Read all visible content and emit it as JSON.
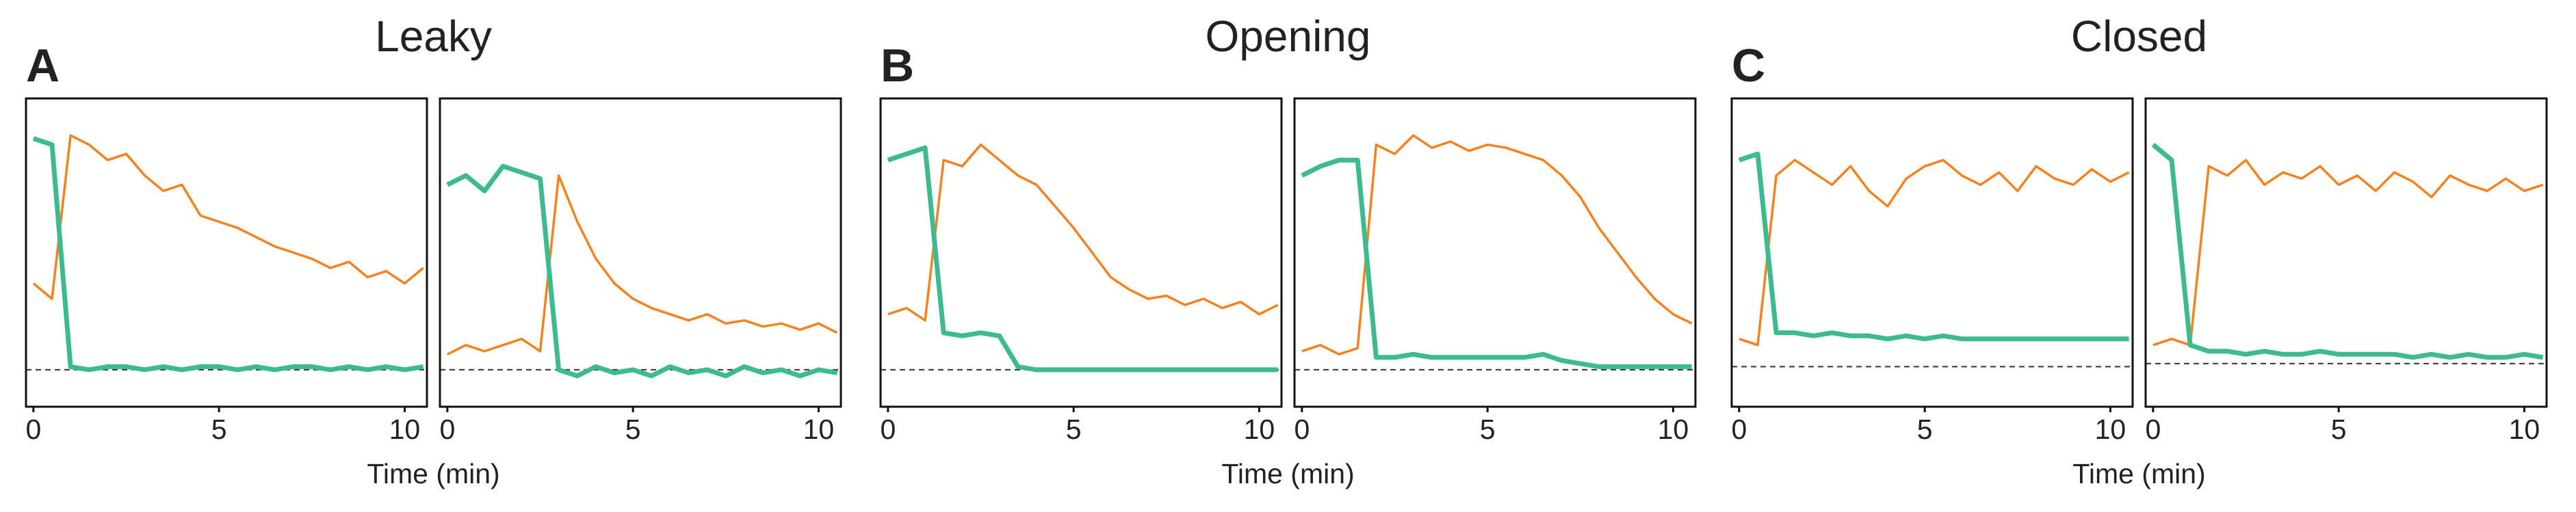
{
  "figure": {
    "groups": [
      {
        "letter": "A",
        "title": "Leaky",
        "x_label": "Time (min)"
      },
      {
        "letter": "B",
        "title": "Opening",
        "x_label": "Time (min)"
      },
      {
        "letter": "C",
        "title": "Closed",
        "x_label": "Time (min)"
      }
    ]
  },
  "chart_data": [
    {
      "type": "line",
      "x": [
        0,
        0.5,
        1,
        1.5,
        2,
        2.5,
        3,
        3.5,
        4,
        4.5,
        5,
        5.5,
        6,
        6.5,
        7,
        7.5,
        8,
        8.5,
        9,
        9.5,
        10,
        10.5
      ],
      "series": [
        {
          "color": "#f5821f",
          "values": [
            0.4,
            0.35,
            0.88,
            0.85,
            0.8,
            0.82,
            0.75,
            0.7,
            0.72,
            0.62,
            0.6,
            0.58,
            0.55,
            0.52,
            0.5,
            0.48,
            0.45,
            0.47,
            0.42,
            0.44,
            0.4,
            0.45
          ]
        },
        {
          "color": "#3dbb8f",
          "values": [
            0.87,
            0.85,
            0.13,
            0.12,
            0.13,
            0.13,
            0.12,
            0.13,
            0.12,
            0.13,
            0.13,
            0.12,
            0.13,
            0.12,
            0.13,
            0.13,
            0.12,
            0.13,
            0.12,
            0.13,
            0.12,
            0.13
          ]
        }
      ],
      "reference_line": 0.12,
      "xlim": [
        -0.2,
        10.6
      ],
      "xticks": [
        0,
        5,
        10
      ],
      "ylim": [
        0,
        1
      ]
    },
    {
      "type": "line",
      "x": [
        0,
        0.5,
        1,
        1.5,
        2,
        2.5,
        3,
        3.5,
        4,
        4.5,
        5,
        5.5,
        6,
        6.5,
        7,
        7.5,
        8,
        8.5,
        9,
        9.5,
        10,
        10.5
      ],
      "series": [
        {
          "color": "#f5821f",
          "values": [
            0.17,
            0.2,
            0.18,
            0.2,
            0.22,
            0.18,
            0.75,
            0.6,
            0.48,
            0.4,
            0.35,
            0.32,
            0.3,
            0.28,
            0.3,
            0.27,
            0.28,
            0.26,
            0.27,
            0.25,
            0.27,
            0.24
          ]
        },
        {
          "color": "#3dbb8f",
          "values": [
            0.72,
            0.75,
            0.7,
            0.78,
            0.76,
            0.74,
            0.12,
            0.1,
            0.13,
            0.11,
            0.12,
            0.1,
            0.13,
            0.11,
            0.12,
            0.1,
            0.13,
            0.11,
            0.12,
            0.1,
            0.12,
            0.11
          ]
        }
      ],
      "reference_line": 0.12,
      "xlim": [
        -0.2,
        10.6
      ],
      "xticks": [
        0,
        5,
        10
      ],
      "ylim": [
        0,
        1
      ]
    },
    {
      "type": "line",
      "x": [
        0,
        0.5,
        1,
        1.5,
        2,
        2.5,
        3,
        3.5,
        4,
        4.5,
        5,
        5.5,
        6,
        6.5,
        7,
        7.5,
        8,
        8.5,
        9,
        9.5,
        10,
        10.5
      ],
      "series": [
        {
          "color": "#f5821f",
          "values": [
            0.3,
            0.32,
            0.28,
            0.8,
            0.78,
            0.85,
            0.8,
            0.75,
            0.72,
            0.65,
            0.58,
            0.5,
            0.42,
            0.38,
            0.35,
            0.36,
            0.33,
            0.35,
            0.32,
            0.34,
            0.3,
            0.33
          ]
        },
        {
          "color": "#3dbb8f",
          "values": [
            0.8,
            0.82,
            0.84,
            0.24,
            0.23,
            0.24,
            0.23,
            0.13,
            0.12,
            0.12,
            0.12,
            0.12,
            0.12,
            0.12,
            0.12,
            0.12,
            0.12,
            0.12,
            0.12,
            0.12,
            0.12,
            0.12
          ]
        }
      ],
      "reference_line": 0.12,
      "xlim": [
        -0.2,
        10.6
      ],
      "xticks": [
        0,
        5,
        10
      ],
      "ylim": [
        0,
        1
      ]
    },
    {
      "type": "line",
      "x": [
        0,
        0.5,
        1,
        1.5,
        2,
        2.5,
        3,
        3.5,
        4,
        4.5,
        5,
        5.5,
        6,
        6.5,
        7,
        7.5,
        8,
        8.5,
        9,
        9.5,
        10,
        10.5
      ],
      "series": [
        {
          "color": "#f5821f",
          "values": [
            0.18,
            0.2,
            0.17,
            0.19,
            0.85,
            0.82,
            0.88,
            0.84,
            0.86,
            0.83,
            0.85,
            0.84,
            0.82,
            0.8,
            0.75,
            0.68,
            0.58,
            0.5,
            0.42,
            0.35,
            0.3,
            0.27
          ]
        },
        {
          "color": "#3dbb8f",
          "values": [
            0.75,
            0.78,
            0.8,
            0.8,
            0.16,
            0.16,
            0.17,
            0.16,
            0.16,
            0.16,
            0.16,
            0.16,
            0.16,
            0.17,
            0.15,
            0.14,
            0.13,
            0.13,
            0.13,
            0.13,
            0.13,
            0.13
          ]
        }
      ],
      "reference_line": 0.12,
      "xlim": [
        -0.2,
        10.6
      ],
      "xticks": [
        0,
        5,
        10
      ],
      "ylim": [
        0,
        1
      ]
    },
    {
      "type": "line",
      "x": [
        0,
        0.5,
        1,
        1.5,
        2,
        2.5,
        3,
        3.5,
        4,
        4.5,
        5,
        5.5,
        6,
        6.5,
        7,
        7.5,
        8,
        8.5,
        9,
        9.5,
        10,
        10.5
      ],
      "series": [
        {
          "color": "#f5821f",
          "values": [
            0.22,
            0.2,
            0.75,
            0.8,
            0.76,
            0.72,
            0.78,
            0.7,
            0.65,
            0.74,
            0.78,
            0.8,
            0.75,
            0.72,
            0.76,
            0.7,
            0.78,
            0.74,
            0.72,
            0.77,
            0.73,
            0.76
          ]
        },
        {
          "color": "#3dbb8f",
          "values": [
            0.8,
            0.82,
            0.24,
            0.24,
            0.23,
            0.24,
            0.23,
            0.23,
            0.22,
            0.23,
            0.22,
            0.23,
            0.22,
            0.22,
            0.22,
            0.22,
            0.22,
            0.22,
            0.22,
            0.22,
            0.22,
            0.22
          ]
        }
      ],
      "reference_line": 0.13,
      "xlim": [
        -0.2,
        10.6
      ],
      "xticks": [
        0,
        5,
        10
      ],
      "ylim": [
        0,
        1
      ]
    },
    {
      "type": "line",
      "x": [
        0,
        0.5,
        1,
        1.5,
        2,
        2.5,
        3,
        3.5,
        4,
        4.5,
        5,
        5.5,
        6,
        6.5,
        7,
        7.5,
        8,
        8.5,
        9,
        9.5,
        10,
        10.5
      ],
      "series": [
        {
          "color": "#f5821f",
          "values": [
            0.2,
            0.22,
            0.2,
            0.78,
            0.75,
            0.8,
            0.72,
            0.76,
            0.74,
            0.78,
            0.72,
            0.75,
            0.7,
            0.76,
            0.73,
            0.68,
            0.75,
            0.72,
            0.7,
            0.74,
            0.7,
            0.72
          ]
        },
        {
          "color": "#3dbb8f",
          "values": [
            0.85,
            0.8,
            0.2,
            0.18,
            0.18,
            0.17,
            0.18,
            0.17,
            0.17,
            0.18,
            0.17,
            0.17,
            0.17,
            0.17,
            0.16,
            0.17,
            0.16,
            0.17,
            0.16,
            0.16,
            0.17,
            0.16
          ]
        }
      ],
      "reference_line": 0.14,
      "xlim": [
        -0.2,
        10.6
      ],
      "xticks": [
        0,
        5,
        10
      ],
      "ylim": [
        0,
        1
      ]
    }
  ]
}
